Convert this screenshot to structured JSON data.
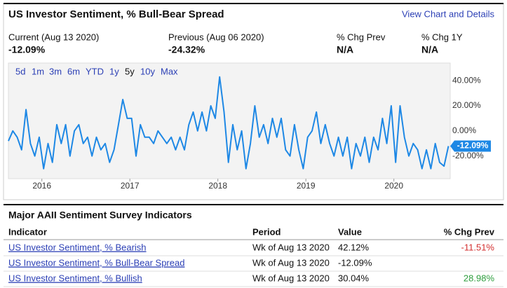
{
  "header": {
    "title": "US Investor Sentiment, % Bull-Bear Spread",
    "link": "View Chart and Details"
  },
  "stats": [
    {
      "label": "Current (Aug 13 2020)",
      "value": "-12.09%"
    },
    {
      "label": "Previous (Aug 06 2020)",
      "value": "-24.32%"
    },
    {
      "label": "% Chg Prev",
      "value": "N/A"
    },
    {
      "label": "% Chg 1Y",
      "value": "N/A"
    }
  ],
  "ranges": [
    "5d",
    "1m",
    "3m",
    "6m",
    "YTD",
    "1y",
    "5y",
    "10y",
    "Max"
  ],
  "selected_range": "5y",
  "chart": {
    "type": "line",
    "color": "#1e88e5",
    "grid": false,
    "x": [
      2015.62,
      2015.67,
      2015.72,
      2015.77,
      2015.82,
      2015.87,
      2015.92,
      2015.97,
      2016.02,
      2016.07,
      2016.12,
      2016.17,
      2016.22,
      2016.27,
      2016.32,
      2016.37,
      2016.42,
      2016.47,
      2016.52,
      2016.57,
      2016.62,
      2016.67,
      2016.72,
      2016.77,
      2016.82,
      2016.87,
      2016.92,
      2016.97,
      2017.02,
      2017.07,
      2017.12,
      2017.17,
      2017.22,
      2017.27,
      2017.32,
      2017.37,
      2017.42,
      2017.47,
      2017.52,
      2017.57,
      2017.62,
      2017.67,
      2017.72,
      2017.77,
      2017.82,
      2017.87,
      2017.92,
      2017.97,
      2018.02,
      2018.07,
      2018.12,
      2018.17,
      2018.22,
      2018.27,
      2018.32,
      2018.37,
      2018.42,
      2018.47,
      2018.52,
      2018.57,
      2018.62,
      2018.67,
      2018.72,
      2018.77,
      2018.82,
      2018.87,
      2018.92,
      2018.97,
      2019.02,
      2019.07,
      2019.12,
      2019.17,
      2019.22,
      2019.27,
      2019.32,
      2019.37,
      2019.42,
      2019.47,
      2019.52,
      2019.57,
      2019.62,
      2019.67,
      2019.72,
      2019.77,
      2019.82,
      2019.87,
      2019.92,
      2019.97,
      2020.02,
      2020.07,
      2020.12,
      2020.17,
      2020.22,
      2020.27,
      2020.32,
      2020.37,
      2020.42,
      2020.47,
      2020.52,
      2020.57,
      2020.62
    ],
    "values": [
      -8,
      0,
      -5,
      -15,
      17,
      -10,
      -20,
      -5,
      -30,
      -10,
      -25,
      5,
      -10,
      5,
      -20,
      0,
      5,
      -10,
      -5,
      -20,
      -5,
      -15,
      -10,
      -25,
      -15,
      5,
      25,
      10,
      10,
      -20,
      5,
      -5,
      -5,
      -10,
      0,
      -5,
      -10,
      -5,
      -15,
      -5,
      -15,
      5,
      15,
      0,
      15,
      0,
      20,
      10,
      43,
      15,
      -25,
      5,
      -15,
      0,
      -30,
      -10,
      20,
      -5,
      5,
      -10,
      10,
      -5,
      10,
      -15,
      -20,
      5,
      -15,
      -30,
      -5,
      0,
      15,
      -10,
      5,
      -10,
      -20,
      -5,
      -20,
      -5,
      -30,
      -10,
      -20,
      -5,
      -25,
      -5,
      -15,
      10,
      -10,
      20,
      -25,
      20,
      -5,
      -20,
      -10,
      -15,
      -30,
      -15,
      -30,
      -10,
      -25,
      -28,
      -12.09
    ],
    "xlim": [
      2015.62,
      2020.64
    ],
    "xticks": [
      2016,
      2017,
      2018,
      2019,
      2020
    ],
    "ylim": [
      -38,
      54
    ],
    "yticks": [
      {
        "value": 40,
        "label": "40.00%"
      },
      {
        "value": 20,
        "label": "20.00%"
      },
      {
        "value": 0,
        "label": "0.00%"
      },
      {
        "value": -20,
        "label": "-20.00%"
      }
    ]
  },
  "table": {
    "title": "Major AAII Sentiment Survey Indicators",
    "header": [
      "Indicator",
      "Period",
      "Value",
      "% Chg Prev"
    ],
    "rows": [
      [
        "US Investor Sentiment, % Bearish",
        "Wk of Aug 13 2020",
        "42.12%",
        "-11.51%"
      ],
      [
        "US Investor Sentiment, % Bull-Bear Spread",
        "Wk of Aug 13 2020",
        "-12.09%",
        ""
      ],
      [
        "US Investor Sentiment, % Bullish",
        "Wk of Aug 13 2020",
        "30.04%",
        "28.98%"
      ]
    ]
  }
}
